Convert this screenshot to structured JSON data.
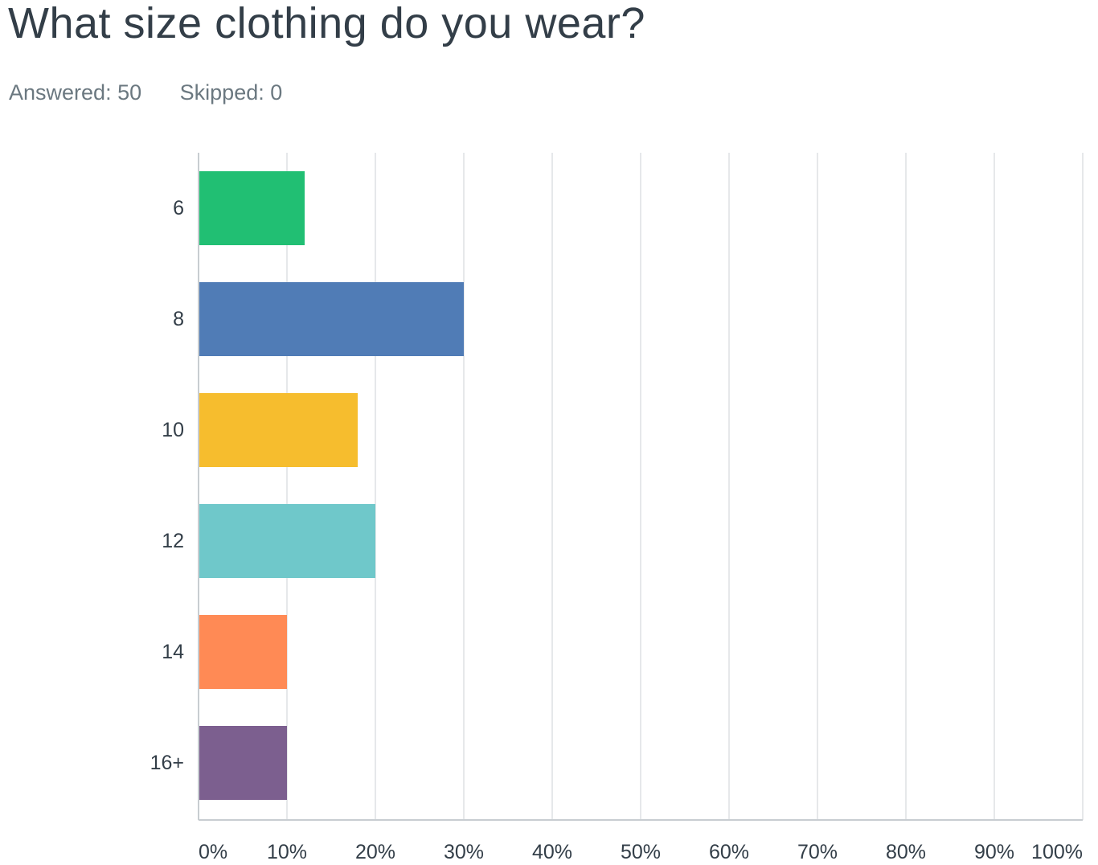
{
  "question": {
    "title": "What size clothing do you wear?",
    "answered_label": "Answered:",
    "answered_value": "50",
    "skipped_label": "Skipped:",
    "skipped_value": "0"
  },
  "chart_data": {
    "type": "bar",
    "orientation": "horizontal",
    "categories": [
      "6",
      "8",
      "10",
      "12",
      "14",
      "16+"
    ],
    "values": [
      12,
      30,
      18,
      20,
      10,
      10
    ],
    "colors": [
      "#21bf73",
      "#507cb6",
      "#f6bd2e",
      "#6fc8ca",
      "#ff8a55",
      "#7c5f8f"
    ],
    "xlim": [
      0,
      100
    ],
    "x_ticks": [
      "0%",
      "10%",
      "20%",
      "30%",
      "40%",
      "50%",
      "60%",
      "70%",
      "80%",
      "90%",
      "100%"
    ],
    "x_tick_values": [
      0,
      10,
      20,
      30,
      40,
      50,
      60,
      70,
      80,
      90,
      100
    ],
    "grid": true,
    "gridline_color": "#e6e8ea",
    "axis_color": "#c8cdd1"
  }
}
